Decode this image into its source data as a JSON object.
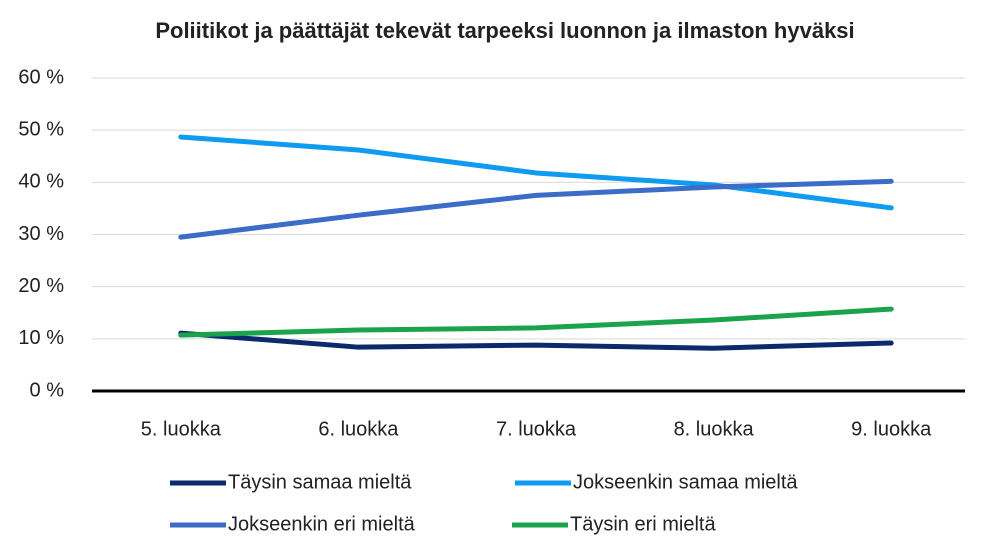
{
  "chart_data": {
    "type": "line",
    "title": "Poliitikot ja päättäjät tekevät tarpeeksi luonnon ja ilmaston hyväksi",
    "categories": [
      "5. luokka",
      "6. luokka",
      "7. luokka",
      "8. luokka",
      "9. luokka"
    ],
    "series": [
      {
        "name": "Täysin samaa mieltä",
        "color": "#0b2a6b",
        "values": [
          11.1,
          8.4,
          8.8,
          8.2,
          9.2
        ]
      },
      {
        "name": "Jokseenkin samaa mieltä",
        "color": "#0f9bf0",
        "values": [
          48.7,
          46.2,
          41.8,
          39.5,
          35.1
        ]
      },
      {
        "name": "Jokseenkin eri mieltä",
        "color": "#3a6cc8",
        "values": [
          29.5,
          33.7,
          37.5,
          39.1,
          40.2
        ]
      },
      {
        "name": "Täysin eri mieltä",
        "color": "#1aa34a",
        "values": [
          10.7,
          11.7,
          12.1,
          13.6,
          15.7
        ]
      }
    ],
    "ylim": [
      0,
      60
    ],
    "yticks": [
      {
        "value": 0,
        "label": "0 %"
      },
      {
        "value": 10,
        "label": "10 %"
      },
      {
        "value": 20,
        "label": "20 %"
      },
      {
        "value": 30,
        "label": "30 %"
      },
      {
        "value": 40,
        "label": "40 %"
      },
      {
        "value": 50,
        "label": "50 %"
      },
      {
        "value": 60,
        "label": "60 %"
      }
    ],
    "grid": true,
    "legend": "bottom"
  }
}
